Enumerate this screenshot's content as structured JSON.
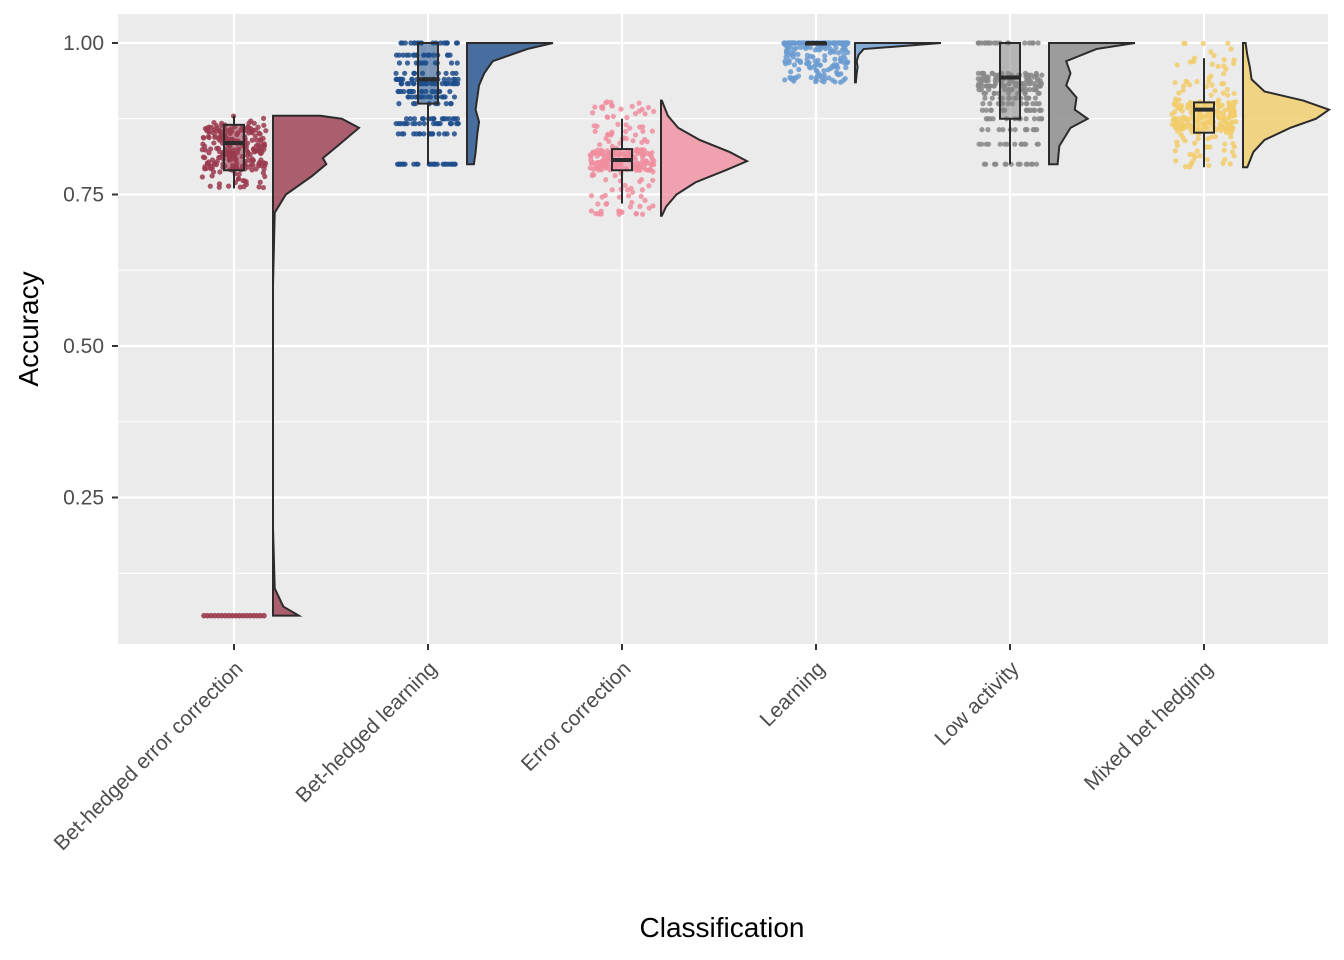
{
  "chart_data": {
    "type": "raincloud",
    "title": "",
    "xlabel": "Classification",
    "ylabel": "Accuracy",
    "ylim": [
      0.0,
      1.04
    ],
    "yticks": [
      0.25,
      0.5,
      0.75,
      1.0
    ],
    "ytick_labels": [
      "0.25",
      "0.50",
      "0.75",
      "1.00"
    ],
    "grid": true,
    "legend": "none",
    "categories": [
      {
        "name": "Bet-hedged error correction",
        "color": "#9b3b4f",
        "box": {
          "min": 0.76,
          "q1": 0.79,
          "median": 0.835,
          "q3": 0.865,
          "max": 0.88
        },
        "point_range": [
          0.76,
          0.88
        ],
        "outlier_levels": [
          0.055
        ],
        "density": [
          [
            0.055,
            0.3
          ],
          [
            0.07,
            0.12
          ],
          [
            0.1,
            0.02
          ],
          [
            0.2,
            0.0
          ],
          [
            0.4,
            0.0
          ],
          [
            0.6,
            0.0
          ],
          [
            0.72,
            0.02
          ],
          [
            0.75,
            0.15
          ],
          [
            0.78,
            0.45
          ],
          [
            0.8,
            0.62
          ],
          [
            0.81,
            0.58
          ],
          [
            0.83,
            0.75
          ],
          [
            0.86,
            1.0
          ],
          [
            0.875,
            0.8
          ],
          [
            0.88,
            0.55
          ]
        ]
      },
      {
        "name": "Bet-hedged learning",
        "color": "#1f4e8c",
        "box": {
          "min": 0.8,
          "q1": 0.9,
          "median": 0.94,
          "q3": 1.0,
          "max": 1.0
        },
        "point_range": [
          0.8,
          1.0
        ],
        "discrete_levels": [
          0.8,
          0.85,
          0.867,
          0.875,
          0.9,
          0.911,
          0.92,
          0.933,
          0.94,
          0.95,
          0.967,
          0.98,
          1.0
        ],
        "outlier_levels": [],
        "density": [
          [
            0.8,
            0.08
          ],
          [
            0.82,
            0.1
          ],
          [
            0.85,
            0.12
          ],
          [
            0.87,
            0.14
          ],
          [
            0.89,
            0.1
          ],
          [
            0.91,
            0.12
          ],
          [
            0.93,
            0.14
          ],
          [
            0.95,
            0.2
          ],
          [
            0.97,
            0.3
          ],
          [
            0.99,
            0.7
          ],
          [
            1.0,
            1.0
          ]
        ]
      },
      {
        "name": "Error correction",
        "color": "#f08ea0",
        "box": {
          "min": 0.735,
          "q1": 0.79,
          "median": 0.807,
          "q3": 0.825,
          "max": 0.875
        },
        "point_range": [
          0.715,
          0.905
        ],
        "outlier_levels": [],
        "density": [
          [
            0.715,
            0.01
          ],
          [
            0.73,
            0.06
          ],
          [
            0.75,
            0.18
          ],
          [
            0.77,
            0.4
          ],
          [
            0.79,
            0.75
          ],
          [
            0.805,
            1.0
          ],
          [
            0.82,
            0.8
          ],
          [
            0.84,
            0.45
          ],
          [
            0.86,
            0.2
          ],
          [
            0.88,
            0.08
          ],
          [
            0.905,
            0.01
          ]
        ]
      },
      {
        "name": "Learning",
        "color": "#6a9bd1",
        "box": {
          "min": 1.0,
          "q1": 1.0,
          "median": 1.0,
          "q3": 1.0,
          "max": 1.0
        },
        "point_range": [
          0.935,
          1.0
        ],
        "outlier_levels": [],
        "density": [
          [
            0.935,
            0.01
          ],
          [
            0.95,
            0.02
          ],
          [
            0.96,
            0.03
          ],
          [
            0.97,
            0.02
          ],
          [
            0.98,
            0.04
          ],
          [
            0.99,
            0.1
          ],
          [
            1.0,
            1.0
          ]
        ]
      },
      {
        "name": "Low activity",
        "color": "#888888",
        "box": {
          "min": 0.8,
          "q1": 0.875,
          "median": 0.943,
          "q3": 1.0,
          "max": 1.0
        },
        "point_range": [
          0.8,
          1.0
        ],
        "discrete_levels": [
          0.8,
          0.833,
          0.857,
          0.875,
          0.889,
          0.9,
          0.909,
          0.917,
          0.923,
          0.929,
          0.933,
          0.938,
          0.941,
          0.944,
          0.947,
          0.95,
          1.0
        ],
        "outlier_levels": [],
        "density": [
          [
            0.8,
            0.1
          ],
          [
            0.83,
            0.12
          ],
          [
            0.86,
            0.25
          ],
          [
            0.875,
            0.45
          ],
          [
            0.89,
            0.3
          ],
          [
            0.91,
            0.32
          ],
          [
            0.93,
            0.2
          ],
          [
            0.95,
            0.25
          ],
          [
            0.97,
            0.2
          ],
          [
            0.99,
            0.55
          ],
          [
            1.0,
            1.0
          ]
        ]
      },
      {
        "name": "Mixed bet hedging",
        "color": "#f2cd6a",
        "box": {
          "min": 0.795,
          "q1": 0.852,
          "median": 0.89,
          "q3": 0.902,
          "max": 0.975
        },
        "point_range": [
          0.795,
          1.0
        ],
        "outlier_levels": [],
        "density": [
          [
            0.795,
            0.05
          ],
          [
            0.82,
            0.12
          ],
          [
            0.84,
            0.25
          ],
          [
            0.86,
            0.55
          ],
          [
            0.875,
            0.85
          ],
          [
            0.89,
            1.0
          ],
          [
            0.905,
            0.7
          ],
          [
            0.92,
            0.25
          ],
          [
            0.94,
            0.1
          ],
          [
            0.96,
            0.08
          ],
          [
            0.98,
            0.05
          ],
          [
            1.0,
            0.03
          ]
        ]
      }
    ]
  }
}
